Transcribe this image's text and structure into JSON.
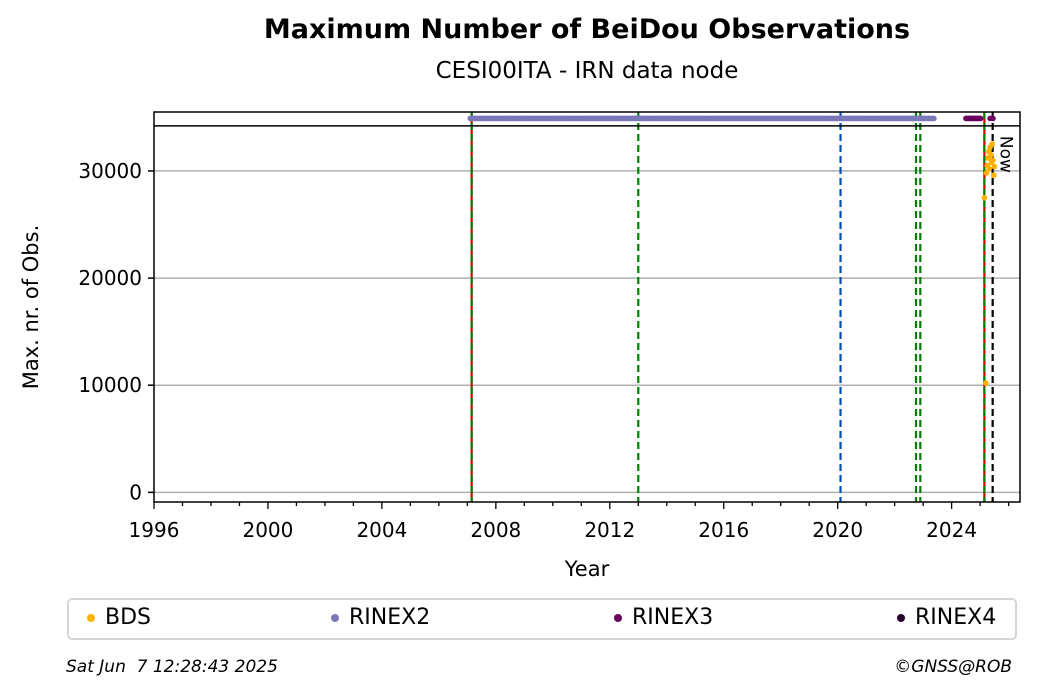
{
  "chart_data": {
    "type": "scatter",
    "title": "Maximum Number of BeiDou Observations",
    "subtitle": "CESI00ITA - IRN data node",
    "xlabel": "Year",
    "ylabel": "Max. nr. of Obs.",
    "xlim": [
      1996,
      2026.4
    ],
    "ylim": [
      -900,
      35500
    ],
    "x_ticks": [
      1996,
      2000,
      2004,
      2008,
      2012,
      2016,
      2020,
      2024
    ],
    "y_ticks": [
      0,
      10000,
      20000,
      30000
    ],
    "grid": "y",
    "legend_position": "bottom",
    "now_label": "Now",
    "now_x": 2025.44,
    "top_band_y": 34900,
    "top_band_line_y": 34200,
    "colors": {
      "BDS": "#ffb000",
      "RINEX2": "#7b78b8",
      "RINEX3": "#6a0060",
      "RINEX4": "#2a0030",
      "red_line": "#dd0000",
      "green_line": "#008000",
      "blue_line": "#0050b0",
      "now_line": "#000000"
    },
    "series": [
      {
        "name": "BDS",
        "points": [
          [
            2025.15,
            27500
          ],
          [
            2025.2,
            10200
          ],
          [
            2025.22,
            29800
          ],
          [
            2025.25,
            30500
          ],
          [
            2025.28,
            31200
          ],
          [
            2025.3,
            31800
          ],
          [
            2025.32,
            30200
          ],
          [
            2025.35,
            32200
          ],
          [
            2025.38,
            31500
          ],
          [
            2025.4,
            30800
          ],
          [
            2025.42,
            32500
          ],
          [
            2025.45,
            31000
          ],
          [
            2025.48,
            29600
          ],
          [
            2025.5,
            30400
          ]
        ]
      },
      {
        "name": "RINEX2",
        "range": [
          2007.1,
          2023.4
        ],
        "y": 34900
      },
      {
        "name": "RINEX3",
        "range": [
          2024.5,
          2025.05
        ],
        "y": 34900,
        "extra_points": [
          [
            2025.35,
            34900
          ],
          [
            2025.45,
            34900
          ]
        ]
      },
      {
        "name": "RINEX4",
        "points": []
      }
    ],
    "vertical_lines": [
      {
        "x": 2007.15,
        "color": "red_line",
        "style": "solid",
        "overlay": "green_line"
      },
      {
        "x": 2013.0,
        "color": "green_line",
        "style": "dashed"
      },
      {
        "x": 2020.1,
        "color": "blue_line",
        "style": "dashed"
      },
      {
        "x": 2022.75,
        "color": "green_line",
        "style": "dashed"
      },
      {
        "x": 2022.9,
        "color": "green_line",
        "style": "dashed"
      },
      {
        "x": 2025.15,
        "color": "red_line",
        "style": "solid",
        "overlay": "green_line"
      },
      {
        "x": 2025.44,
        "color": "now_line",
        "style": "dashed"
      }
    ]
  },
  "legend": {
    "items": [
      {
        "label": "BDS",
        "color": "#ffb000"
      },
      {
        "label": "RINEX2",
        "color": "#7b78b8"
      },
      {
        "label": "RINEX3",
        "color": "#6a0060"
      },
      {
        "label": "RINEX4",
        "color": "#2a0030"
      }
    ]
  },
  "footer": {
    "timestamp": "Sat Jun  7 12:28:43 2025",
    "copyright": "©GNSS@ROB"
  }
}
